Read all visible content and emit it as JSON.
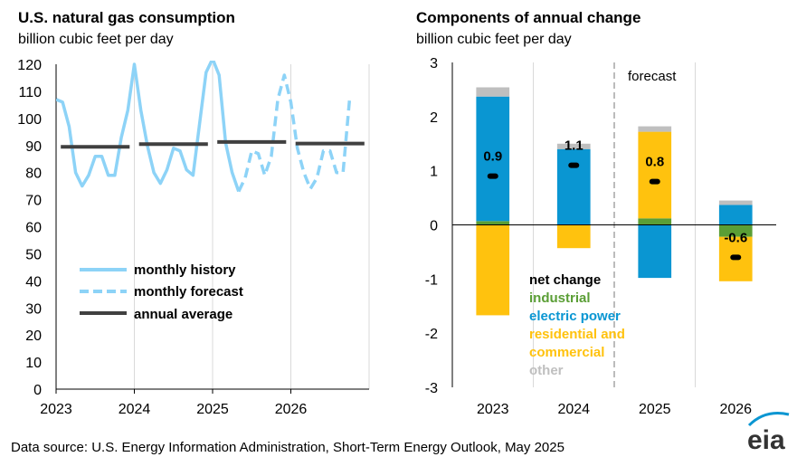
{
  "source": "Data source: U.S. Energy Information Administration, Short-Term Energy Outlook, May 2025",
  "logo_text": "eia",
  "colors": {
    "monthly": "#8dd3f7",
    "annual": "#404040",
    "industrial": "#5a9e35",
    "electric_power": "#0a96d2",
    "residential": "#ffc20e",
    "other": "#bfbfbf",
    "grid": "#d9d9d9",
    "forecast_divider": "#a6a6a6"
  },
  "chart_data": [
    {
      "type": "line",
      "title": "U.S. natural gas consumption",
      "subtitle": "billion cubic feet per day",
      "ylim": [
        0,
        120
      ],
      "yticks": [
        0,
        10,
        20,
        30,
        40,
        50,
        60,
        70,
        80,
        90,
        100,
        110,
        120
      ],
      "xlim": [
        2023,
        2027
      ],
      "xticks": [
        "2023",
        "2024",
        "2025",
        "2026"
      ],
      "grid": "vertical",
      "legend_position": "lower-left",
      "legend": [
        "monthly history",
        "monthly forecast",
        "annual average"
      ],
      "monthly_history": [
        107,
        106,
        97,
        80,
        75,
        79,
        86,
        86,
        79,
        79,
        93,
        103,
        120,
        103,
        90,
        80,
        76,
        81,
        89,
        88,
        81,
        79,
        98,
        117,
        122,
        116,
        91,
        80,
        73
      ],
      "monthly_forecast": [
        73,
        78,
        88,
        87,
        79,
        86,
        107,
        116,
        106,
        89,
        80,
        74,
        78,
        88,
        88,
        80,
        80,
        107
      ],
      "forecast_start_index": 28,
      "annual_average": [
        {
          "year": "2023",
          "value": 89.5
        },
        {
          "year": "2024",
          "value": 90.5
        },
        {
          "year": "2025",
          "value": 91.3
        },
        {
          "year": "2026",
          "value": 90.7
        }
      ]
    },
    {
      "type": "bar",
      "stacked": true,
      "title": "Components of annual change",
      "subtitle": "billion cubic feet per day",
      "annotation": "forecast",
      "ylim": [
        -3,
        3
      ],
      "yticks": [
        -3,
        -2,
        -1,
        0,
        1,
        2,
        3
      ],
      "categories": [
        "2023",
        "2024",
        "2025",
        "2026"
      ],
      "series": [
        {
          "name": "industrial",
          "values": [
            0.07,
            0.0,
            0.12,
            -0.22
          ]
        },
        {
          "name": "electric power",
          "values": [
            2.3,
            1.4,
            -0.98,
            0.37
          ]
        },
        {
          "name": "residential and commercial",
          "values": [
            -1.67,
            -0.43,
            1.6,
            -0.82
          ]
        },
        {
          "name": "other",
          "values": [
            0.17,
            0.1,
            0.1,
            0.08
          ]
        }
      ],
      "net_change": [
        0.9,
        1.1,
        0.8,
        -0.6
      ],
      "net_change_labels": [
        "0.9",
        "1.1",
        "0.8",
        "-0.6"
      ],
      "legend": [
        {
          "label": "net change",
          "color": "#000000"
        },
        {
          "label": "industrial",
          "color": "#5a9e35"
        },
        {
          "label": "electric power",
          "color": "#0a96d2"
        },
        {
          "label": "residential and",
          "color": "#ffc20e"
        },
        {
          "label": "commercial",
          "color": "#ffc20e"
        },
        {
          "label": "other",
          "color": "#bfbfbf"
        }
      ]
    }
  ]
}
